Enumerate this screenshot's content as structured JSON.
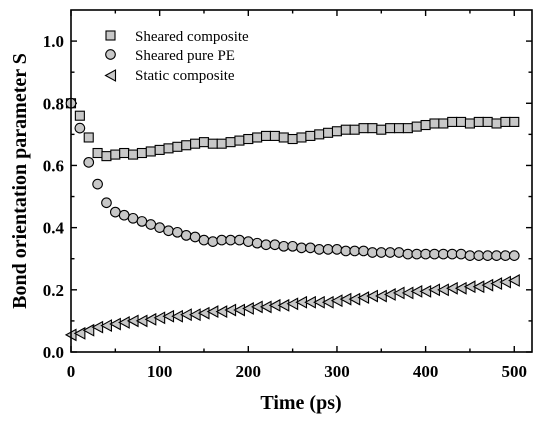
{
  "chart_data": {
    "type": "scatter",
    "xlabel": "Time (ps)",
    "ylabel": "Bond orientation parameter S",
    "xlim": [
      0,
      520
    ],
    "ylim": [
      0,
      1.1
    ],
    "xticks": [
      0,
      100,
      200,
      300,
      400,
      500
    ],
    "yticks": [
      0.0,
      0.2,
      0.4,
      0.6,
      0.8,
      1.0
    ],
    "x_tick_labels": [
      "0",
      "100",
      "200",
      "300",
      "400",
      "500"
    ],
    "y_tick_labels": [
      "0.0",
      "0.2",
      "0.4",
      "0.6",
      "0.8",
      "1.0"
    ],
    "legend_position": "top-left",
    "marker_fill": "#c8c8c8",
    "series": [
      {
        "name": "Sheared composite",
        "marker": "square",
        "x": [
          0,
          10,
          20,
          30,
          40,
          50,
          60,
          70,
          80,
          90,
          100,
          110,
          120,
          130,
          140,
          150,
          160,
          170,
          180,
          190,
          200,
          210,
          220,
          230,
          240,
          250,
          260,
          270,
          280,
          290,
          300,
          310,
          320,
          330,
          340,
          350,
          360,
          370,
          380,
          390,
          400,
          410,
          420,
          430,
          440,
          450,
          460,
          470,
          480,
          490,
          500
        ],
        "y": [
          0.8,
          0.76,
          0.69,
          0.64,
          0.63,
          0.635,
          0.64,
          0.635,
          0.64,
          0.645,
          0.65,
          0.655,
          0.66,
          0.665,
          0.67,
          0.675,
          0.67,
          0.67,
          0.675,
          0.68,
          0.685,
          0.69,
          0.695,
          0.695,
          0.69,
          0.685,
          0.69,
          0.695,
          0.7,
          0.705,
          0.71,
          0.715,
          0.715,
          0.72,
          0.72,
          0.715,
          0.72,
          0.72,
          0.72,
          0.725,
          0.73,
          0.735,
          0.735,
          0.74,
          0.74,
          0.735,
          0.74,
          0.74,
          0.735,
          0.74,
          0.74
        ]
      },
      {
        "name": "Sheared pure PE",
        "marker": "circle",
        "x": [
          0,
          10,
          20,
          30,
          40,
          50,
          60,
          70,
          80,
          90,
          100,
          110,
          120,
          130,
          140,
          150,
          160,
          170,
          180,
          190,
          200,
          210,
          220,
          230,
          240,
          250,
          260,
          270,
          280,
          290,
          300,
          310,
          320,
          330,
          340,
          350,
          360,
          370,
          380,
          390,
          400,
          410,
          420,
          430,
          440,
          450,
          460,
          470,
          480,
          490,
          500
        ],
        "y": [
          0.8,
          0.72,
          0.61,
          0.54,
          0.48,
          0.45,
          0.44,
          0.43,
          0.42,
          0.41,
          0.4,
          0.39,
          0.385,
          0.375,
          0.37,
          0.36,
          0.355,
          0.36,
          0.36,
          0.36,
          0.355,
          0.35,
          0.345,
          0.345,
          0.34,
          0.34,
          0.335,
          0.335,
          0.33,
          0.33,
          0.33,
          0.325,
          0.325,
          0.325,
          0.32,
          0.32,
          0.32,
          0.32,
          0.315,
          0.315,
          0.315,
          0.315,
          0.315,
          0.315,
          0.315,
          0.31,
          0.31,
          0.31,
          0.31,
          0.31,
          0.31
        ]
      },
      {
        "name": "Static composite",
        "marker": "triangle-left",
        "x": [
          0,
          10,
          20,
          30,
          40,
          50,
          60,
          70,
          80,
          90,
          100,
          110,
          120,
          130,
          140,
          150,
          160,
          170,
          180,
          190,
          200,
          210,
          220,
          230,
          240,
          250,
          260,
          270,
          280,
          290,
          300,
          310,
          320,
          330,
          340,
          350,
          360,
          370,
          380,
          390,
          400,
          410,
          420,
          430,
          440,
          450,
          460,
          470,
          480,
          490,
          500
        ],
        "y": [
          0.055,
          0.06,
          0.07,
          0.08,
          0.085,
          0.09,
          0.095,
          0.1,
          0.1,
          0.105,
          0.11,
          0.115,
          0.115,
          0.12,
          0.12,
          0.125,
          0.13,
          0.13,
          0.135,
          0.135,
          0.14,
          0.145,
          0.145,
          0.15,
          0.15,
          0.155,
          0.16,
          0.16,
          0.16,
          0.16,
          0.165,
          0.17,
          0.17,
          0.175,
          0.18,
          0.18,
          0.185,
          0.19,
          0.19,
          0.195,
          0.195,
          0.2,
          0.2,
          0.205,
          0.205,
          0.21,
          0.21,
          0.215,
          0.22,
          0.225,
          0.23
        ]
      }
    ]
  }
}
